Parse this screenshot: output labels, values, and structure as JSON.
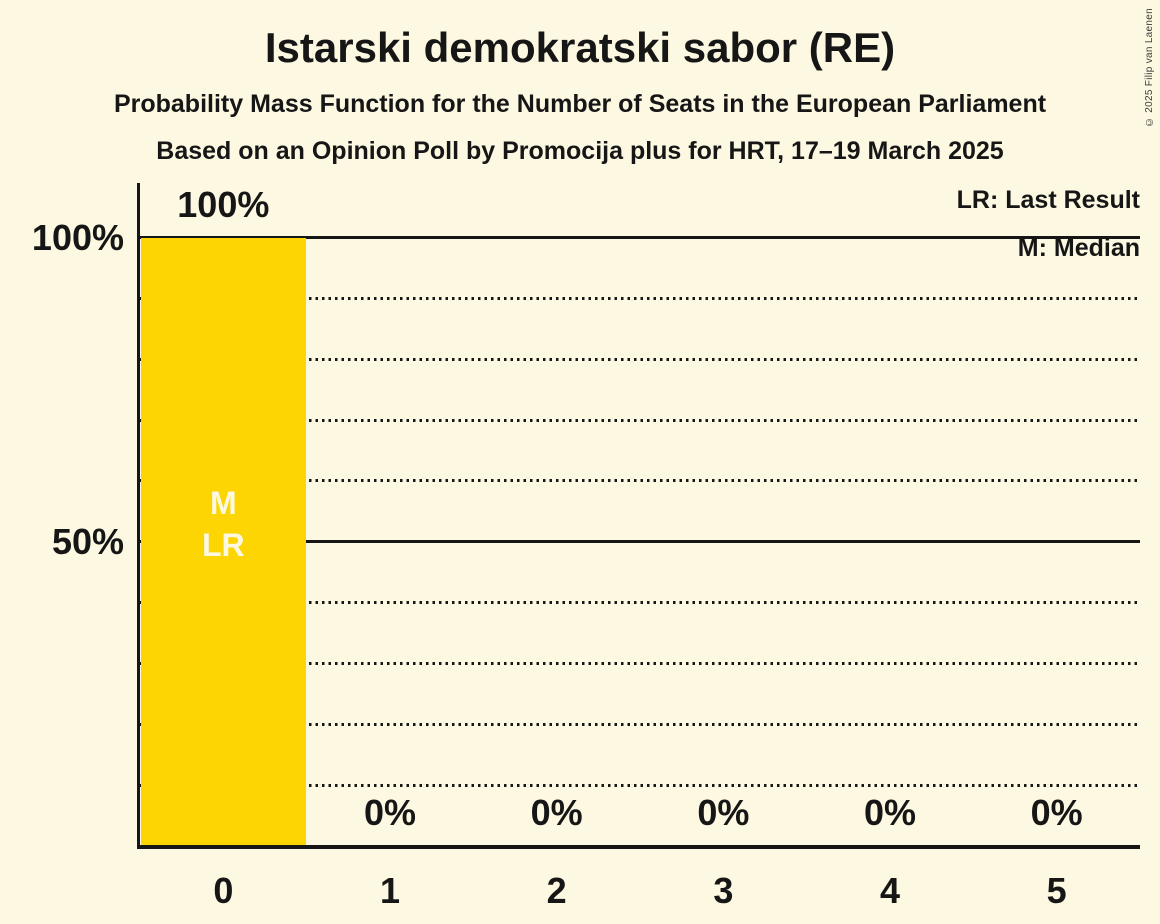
{
  "copyright": "© 2025 Filip van Laenen",
  "colors": {
    "background": "#FDF8E1",
    "bar": "#FCD503",
    "text": "#161616",
    "bar_label_text": "#FDF8E1"
  },
  "chart_data": {
    "type": "bar",
    "title": "Istarski demokratski sabor (RE)",
    "subtitle": "Probability Mass Function for the Number of Seats in the European Parliament",
    "note": "Based on an Opinion Poll by Promocija plus for HRT, 17–19 March 2025",
    "categories": [
      "0",
      "1",
      "2",
      "3",
      "4",
      "5"
    ],
    "values": [
      100,
      0,
      0,
      0,
      0,
      0
    ],
    "value_labels": [
      "100%",
      "0%",
      "0%",
      "0%",
      "0%",
      "0%"
    ],
    "ylim": [
      0,
      100
    ],
    "y_axis_labels": [
      {
        "value": 100,
        "label": "100%"
      },
      {
        "value": 50,
        "label": "50%"
      }
    ],
    "gridlines": {
      "solid": [
        100,
        50
      ],
      "dotted": [
        90,
        80,
        70,
        60,
        40,
        30,
        20,
        10
      ]
    },
    "legend": {
      "lr": "LR: Last Result",
      "m": "M: Median",
      "position": "top-right"
    },
    "annotations": [
      {
        "category": "0",
        "lines": [
          "M",
          "LR"
        ]
      }
    ]
  }
}
